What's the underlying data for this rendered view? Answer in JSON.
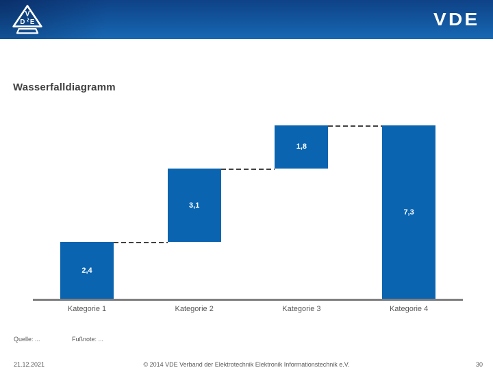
{
  "header": {
    "brand_wordmark": "VDE",
    "logo_letters": {
      "top": "V",
      "left": "D",
      "right": "E"
    },
    "background_top": "#0f4287",
    "background_bottom": "#1767b3"
  },
  "slide": {
    "title": "Wasserfalldiagramm",
    "source": "Quelle: ...",
    "footnote": "Fußnote: ...",
    "date": "21.12.2021",
    "copyright": "© 2014 VDE Verband der Elektrotechnik Elektronik Informationstechnik e.V.",
    "page_number": "30"
  },
  "chart_data": {
    "type": "bar",
    "subtype": "waterfall",
    "title": "Wasserfalldiagramm",
    "categories": [
      "Kategorie 1",
      "Kategorie 2",
      "Kategorie 3",
      "Kategorie 4"
    ],
    "values": [
      2.4,
      3.1,
      1.8,
      7.3
    ],
    "value_labels": [
      "2,4",
      "3,1",
      "1,8",
      "7,3"
    ],
    "is_total": [
      false,
      false,
      false,
      true
    ],
    "cumulative_starts": [
      0,
      2.4,
      5.5,
      0
    ],
    "ylim": [
      0,
      7.3
    ],
    "grid": false,
    "legend": false,
    "bar_color": "#0a64b0",
    "value_label_color": "#ffffff",
    "connector_style": "dashed",
    "connector_color": "#404040",
    "axis_color": "#7f7f7f",
    "category_label_color": "#595959"
  }
}
